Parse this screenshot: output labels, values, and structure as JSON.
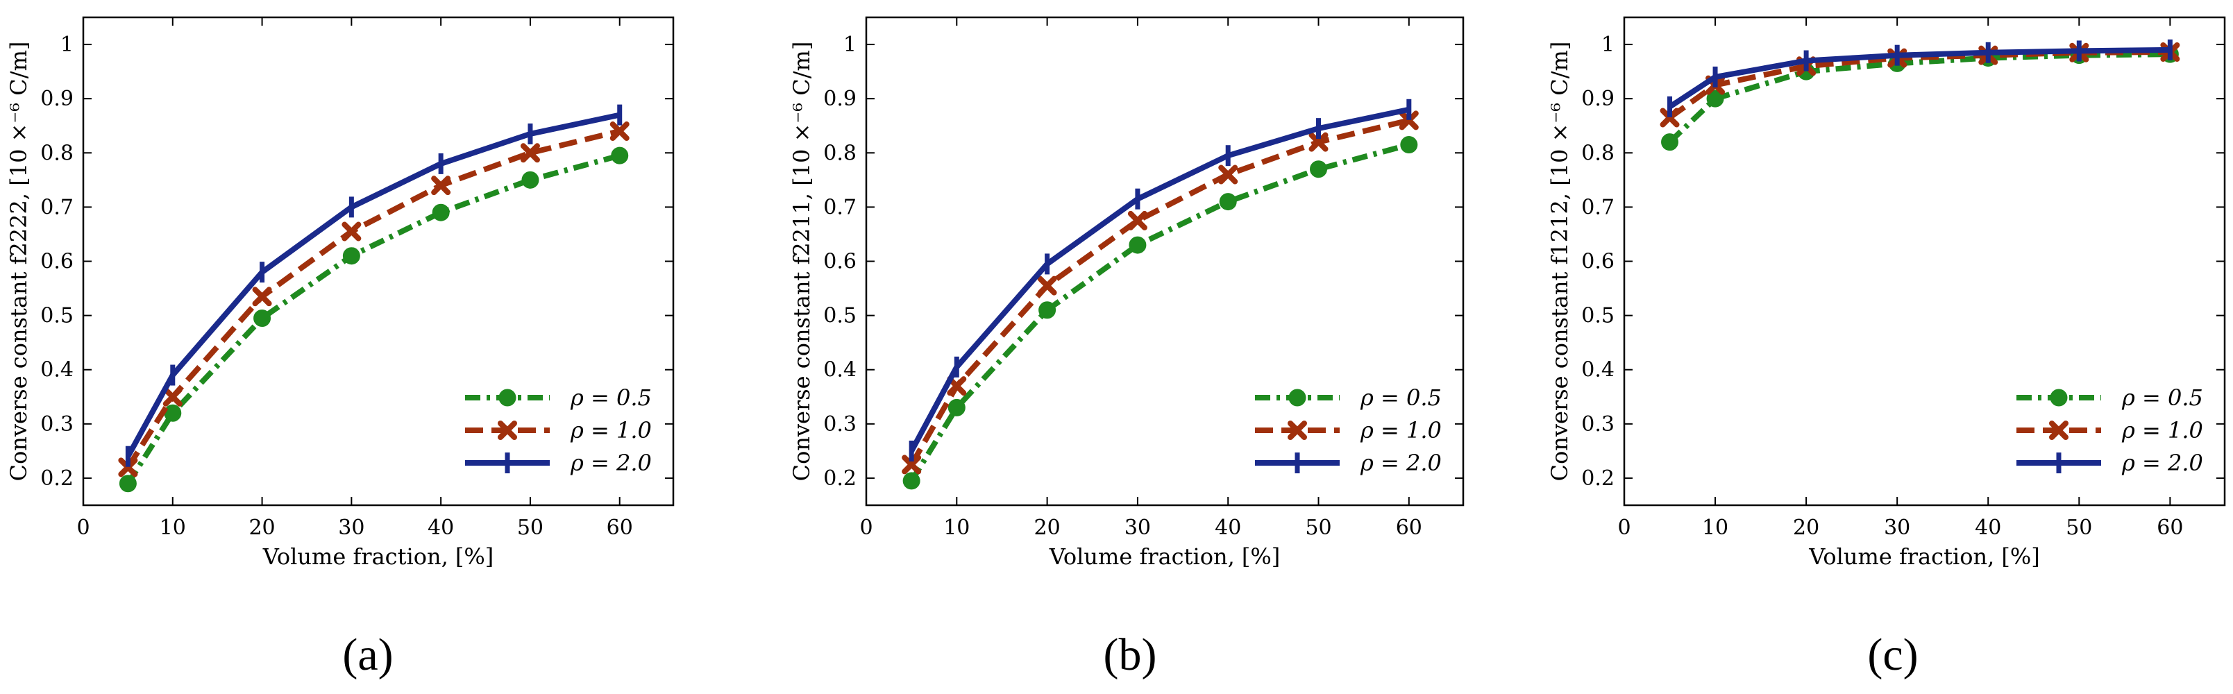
{
  "figure": {
    "panel_labels": [
      "(a)",
      "(b)",
      "(c)"
    ]
  },
  "chart_data": [
    {
      "type": "line",
      "panel": "(a)",
      "xlabel": "Volume fraction, [%]",
      "ylabel": "Converse constant f2222, [10 ×⁻⁶ C/m]",
      "xlim": [
        0,
        66
      ],
      "ylim": [
        0.15,
        1.05
      ],
      "xticks": [
        0,
        10,
        20,
        30,
        40,
        50,
        60
      ],
      "yticks": [
        0.2,
        0.3,
        0.4,
        0.5,
        0.6,
        0.7,
        0.8,
        0.9,
        1
      ],
      "ytick_labels": [
        "0.2",
        "0.3",
        "0.4",
        "0.5",
        "0.6",
        "0.7",
        "0.8",
        "0.9",
        "1"
      ],
      "grid": false,
      "legend_position": "lower-right",
      "x": [
        5,
        10,
        20,
        30,
        40,
        50,
        60
      ],
      "series": [
        {
          "name": "ρ = 0.5",
          "color": "#1f8a1f",
          "marker": "circle",
          "style": "dashdot",
          "values": [
            0.19,
            0.32,
            0.495,
            0.61,
            0.69,
            0.75,
            0.795
          ]
        },
        {
          "name": "ρ = 1.0",
          "color": "#a0300c",
          "marker": "x",
          "style": "dashed",
          "values": [
            0.22,
            0.35,
            0.535,
            0.655,
            0.74,
            0.8,
            0.84
          ]
        },
        {
          "name": "ρ = 2.0",
          "color": "#1a2a8c",
          "marker": "vline",
          "style": "solid",
          "values": [
            0.24,
            0.39,
            0.58,
            0.7,
            0.78,
            0.835,
            0.87
          ]
        }
      ]
    },
    {
      "type": "line",
      "panel": "(b)",
      "xlabel": "Volume fraction, [%]",
      "ylabel": "Converse constant f2211, [10 ×⁻⁶ C/m]",
      "xlim": [
        0,
        66
      ],
      "ylim": [
        0.15,
        1.05
      ],
      "xticks": [
        0,
        10,
        20,
        30,
        40,
        50,
        60
      ],
      "yticks": [
        0.2,
        0.3,
        0.4,
        0.5,
        0.6,
        0.7,
        0.8,
        0.9,
        1
      ],
      "ytick_labels": [
        "0.2",
        "0.3",
        "0.4",
        "0.5",
        "0.6",
        "0.7",
        "0.8",
        "0.9",
        "1"
      ],
      "grid": false,
      "legend_position": "lower-right",
      "x": [
        5,
        10,
        20,
        30,
        40,
        50,
        60
      ],
      "series": [
        {
          "name": "ρ = 0.5",
          "color": "#1f8a1f",
          "marker": "circle",
          "style": "dashdot",
          "values": [
            0.195,
            0.33,
            0.51,
            0.63,
            0.71,
            0.77,
            0.815
          ]
        },
        {
          "name": "ρ = 1.0",
          "color": "#a0300c",
          "marker": "x",
          "style": "dashed",
          "values": [
            0.225,
            0.37,
            0.555,
            0.675,
            0.76,
            0.82,
            0.86
          ]
        },
        {
          "name": "ρ = 2.0",
          "color": "#1a2a8c",
          "marker": "vline",
          "style": "solid",
          "values": [
            0.25,
            0.405,
            0.595,
            0.715,
            0.795,
            0.845,
            0.88
          ]
        }
      ]
    },
    {
      "type": "line",
      "panel": "(c)",
      "xlabel": "Volume fraction, [%]",
      "ylabel": "Converse constant f1212, [10 ×⁻⁶ C/m]",
      "xlim": [
        0,
        66
      ],
      "ylim": [
        0.15,
        1.05
      ],
      "xticks": [
        0,
        10,
        20,
        30,
        40,
        50,
        60
      ],
      "yticks": [
        0.2,
        0.3,
        0.4,
        0.5,
        0.6,
        0.7,
        0.8,
        0.9,
        1
      ],
      "ytick_labels": [
        "0.2",
        "0.3",
        "0.4",
        "0.5",
        "0.6",
        "0.7",
        "0.8",
        "0.9",
        "1"
      ],
      "grid": false,
      "legend_position": "lower-right",
      "x": [
        5,
        10,
        20,
        30,
        40,
        50,
        60
      ],
      "series": [
        {
          "name": "ρ = 0.5",
          "color": "#1f8a1f",
          "marker": "circle",
          "style": "dashdot",
          "values": [
            0.82,
            0.9,
            0.95,
            0.965,
            0.975,
            0.98,
            0.982
          ]
        },
        {
          "name": "ρ = 1.0",
          "color": "#a0300c",
          "marker": "x",
          "style": "dashed",
          "values": [
            0.865,
            0.925,
            0.96,
            0.975,
            0.98,
            0.985,
            0.986
          ]
        },
        {
          "name": "ρ = 2.0",
          "color": "#1a2a8c",
          "marker": "vline",
          "style": "solid",
          "values": [
            0.885,
            0.94,
            0.97,
            0.98,
            0.985,
            0.988,
            0.99
          ]
        }
      ]
    }
  ]
}
